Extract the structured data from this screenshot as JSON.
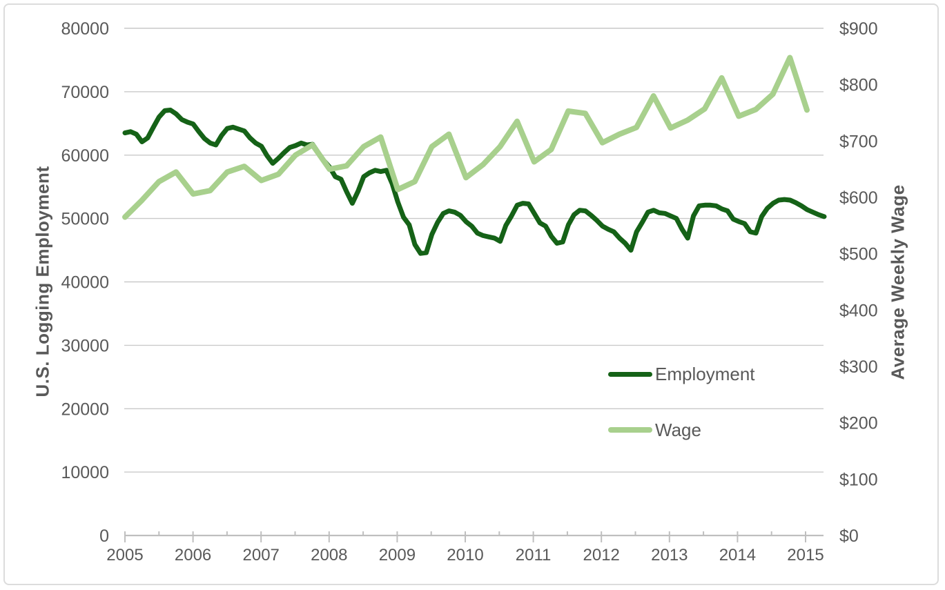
{
  "colors": {
    "employment": "#156217",
    "wage": "#a8d08d",
    "gridline": "#c9c9c9",
    "axis_line": "#bfbfbf",
    "text": "#595959",
    "frame_border": "#dcdcdc",
    "background": "#ffffff"
  },
  "left_axis": {
    "title": "U.S. Logging Employment",
    "tick_labels": [
      "0",
      "10000",
      "20000",
      "30000",
      "40000",
      "50000",
      "60000",
      "70000",
      "80000"
    ],
    "tick_values": [
      0,
      10000,
      20000,
      30000,
      40000,
      50000,
      60000,
      70000,
      80000
    ]
  },
  "right_axis": {
    "title": "Average Weekly Wage",
    "tick_labels": [
      "$0",
      "$100",
      "$200",
      "$300",
      "$400",
      "$500",
      "$600",
      "$700",
      "$800",
      "$900"
    ],
    "tick_values": [
      0,
      100,
      200,
      300,
      400,
      500,
      600,
      700,
      800,
      900
    ]
  },
  "x_axis": {
    "year_labels": [
      "2005",
      "2006",
      "2007",
      "2008",
      "2009",
      "2010",
      "2011",
      "2012",
      "2013",
      "2014",
      "2015"
    ]
  },
  "legend": {
    "entries": [
      {
        "label": "Employment",
        "series": "employment"
      },
      {
        "label": "Wage",
        "series": "wage"
      }
    ]
  },
  "chart_data": {
    "type": "line",
    "title": "",
    "xlabel": "",
    "left_ylabel": "U.S. Logging Employment",
    "right_ylabel": "Average Weekly Wage",
    "left_ylim": [
      0,
      80000
    ],
    "right_ylim": [
      0,
      900
    ],
    "x_range": [
      "2005-01",
      "2015-04"
    ],
    "grid": "horizontal",
    "legend_position": "inside-center-right",
    "series": [
      {
        "name": "Employment",
        "y_axis": "left",
        "frequency": "monthly",
        "start": "2005-01",
        "values": [
          63500,
          63700,
          63300,
          62100,
          62700,
          64400,
          66000,
          67000,
          67100,
          66500,
          65600,
          65200,
          64900,
          63700,
          62600,
          61900,
          61600,
          63100,
          64200,
          64400,
          64100,
          63800,
          62700,
          61900,
          61400,
          59900,
          58700,
          59500,
          60400,
          61200,
          61500,
          61900,
          61600,
          61700,
          60400,
          59100,
          58100,
          56600,
          56200,
          54200,
          52400,
          54300,
          56600,
          57200,
          57600,
          57400,
          57600,
          55500,
          52600,
          50200,
          49000,
          45900,
          44500,
          44600,
          47500,
          49400,
          50800,
          51200,
          51000,
          50500,
          49500,
          48800,
          47700,
          47300,
          47100,
          46900,
          46400,
          48900,
          50400,
          52100,
          52400,
          52300,
          50800,
          49300,
          48800,
          47200,
          46100,
          46300,
          49000,
          50600,
          51300,
          51200,
          50500,
          49700,
          48800,
          48300,
          47900,
          46900,
          46100,
          45000,
          47900,
          49400,
          51000,
          51300,
          50900,
          50800,
          50400,
          50000,
          48300,
          46900,
          50400,
          52000,
          52100,
          52100,
          52000,
          51500,
          51200,
          49900,
          49500,
          49200,
          47900,
          47700,
          50300,
          51600,
          52400,
          52900,
          53000,
          52900,
          52500,
          52000,
          51400,
          51000,
          50600,
          50300
        ]
      },
      {
        "name": "Wage",
        "y_axis": "right",
        "frequency": "quarterly",
        "start": "2005-Q1",
        "values": [
          565,
          595,
          628,
          645,
          606,
          612,
          645,
          655,
          630,
          641,
          675,
          693,
          650,
          656,
          690,
          707,
          614,
          628,
          690,
          712,
          635,
          658,
          690,
          735,
          663,
          685,
          753,
          749,
          697,
          712,
          724,
          780,
          723,
          737,
          757,
          812,
          744,
          756,
          783,
          848,
          755
        ]
      }
    ]
  }
}
